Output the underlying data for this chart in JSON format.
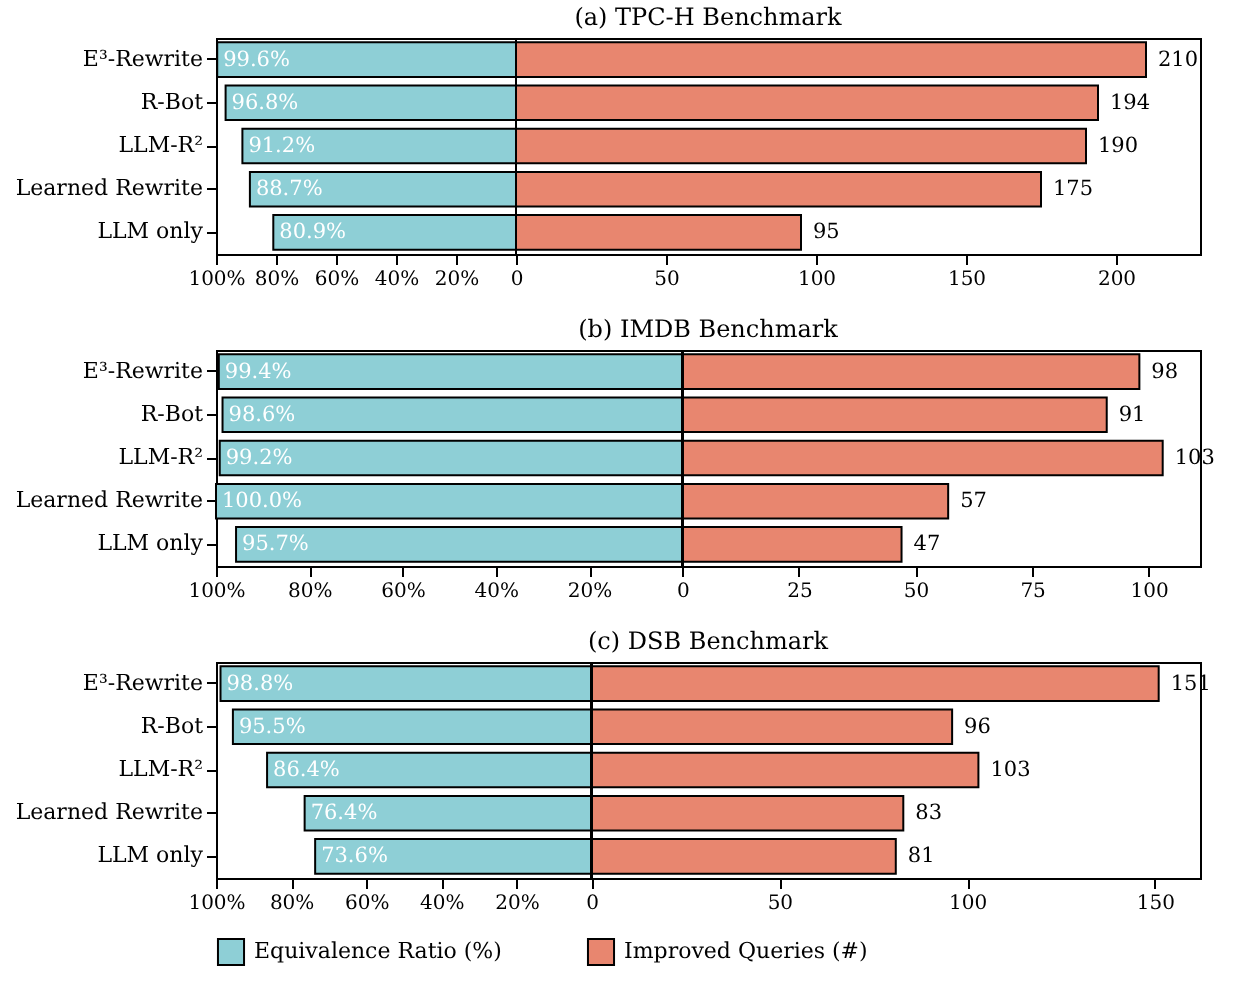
{
  "chart_data": [
    {
      "type": "bar",
      "orientation": "horizontal",
      "title": "(a) TPC-H Benchmark",
      "categories": [
        "E³-Rewrite",
        "R-Bot",
        "LLM-R²",
        "Learned Rewrite",
        "LLM only"
      ],
      "series": [
        {
          "color": "#8ecfd6",
          "base": [
            -99.6,
            -96.8,
            -91.2,
            -88.7,
            -80.9
          ],
          "values": [
            99.6,
            96.8,
            91.2,
            88.7,
            80.9
          ],
          "value_labels": [
            "99.6%",
            "96.8%",
            "91.2%",
            "88.7%",
            "80.9%"
          ]
        },
        {
          "color": "#e8866f",
          "values": [
            210,
            194,
            190,
            175,
            95
          ],
          "value_labels": [
            "210",
            "194",
            "190",
            "175",
            "95"
          ]
        }
      ],
      "xlim": [
        -100,
        228
      ],
      "xticks": [
        {
          "value": -100,
          "label": "100%"
        },
        {
          "value": -80,
          "label": "80%"
        },
        {
          "value": -60,
          "label": "60%"
        },
        {
          "value": -40,
          "label": "40%"
        },
        {
          "value": -20,
          "label": "20%"
        },
        0,
        50,
        100,
        150,
        200
      ],
      "ref_lines": [
        {
          "axis": "x",
          "value": 0
        }
      ]
    },
    {
      "type": "bar",
      "orientation": "horizontal",
      "title": "(b) IMDB Benchmark",
      "categories": [
        "E³-Rewrite",
        "R-Bot",
        "LLM-R²",
        "Learned Rewrite",
        "LLM only"
      ],
      "series": [
        {
          "color": "#8ecfd6",
          "base": [
            -99.4,
            -98.6,
            -99.2,
            -100.0,
            -95.7
          ],
          "values": [
            99.4,
            98.6,
            99.2,
            100.0,
            95.7
          ],
          "value_labels": [
            "99.4%",
            "98.6%",
            "99.2%",
            "100.0%",
            "95.7%"
          ]
        },
        {
          "color": "#e8866f",
          "values": [
            98,
            91,
            103,
            57,
            47
          ],
          "value_labels": [
            "98",
            "91",
            "103",
            "57",
            "47"
          ]
        }
      ],
      "xlim": [
        -100,
        111
      ],
      "xticks": [
        {
          "value": -100,
          "label": "100%"
        },
        {
          "value": -80,
          "label": "80%"
        },
        {
          "value": -60,
          "label": "60%"
        },
        {
          "value": -40,
          "label": "40%"
        },
        {
          "value": -20,
          "label": "20%"
        },
        0,
        25,
        50,
        75,
        100
      ],
      "ref_lines": [
        {
          "axis": "x",
          "value": 0
        }
      ]
    },
    {
      "type": "bar",
      "orientation": "horizontal",
      "title": "(c) DSB Benchmark",
      "categories": [
        "E³-Rewrite",
        "R-Bot",
        "LLM-R²",
        "Learned Rewrite",
        "LLM only"
      ],
      "series": [
        {
          "name": "Equivalence Ratio (%)",
          "color": "#8ecfd6",
          "base": [
            -98.8,
            -95.5,
            -86.4,
            -76.4,
            -73.6
          ],
          "values": [
            98.8,
            95.5,
            86.4,
            76.4,
            73.6
          ],
          "value_labels": [
            "98.8%",
            "95.5%",
            "86.4%",
            "76.4%",
            "73.6%"
          ]
        },
        {
          "name": "Improved Queries (#)",
          "color": "#e8866f",
          "values": [
            151,
            96,
            103,
            83,
            81
          ],
          "value_labels": [
            "151",
            "96",
            "103",
            "83",
            "81"
          ]
        }
      ],
      "xlim": [
        -100,
        162
      ],
      "xticks": [
        {
          "value": -100,
          "label": "100%"
        },
        {
          "value": -80,
          "label": "80%"
        },
        {
          "value": -60,
          "label": "60%"
        },
        {
          "value": -40,
          "label": "40%"
        },
        {
          "value": -20,
          "label": "20%"
        },
        0,
        50,
        100,
        150
      ],
      "ref_lines": [
        {
          "axis": "x",
          "value": 0
        }
      ],
      "legend": "bottom"
    }
  ]
}
